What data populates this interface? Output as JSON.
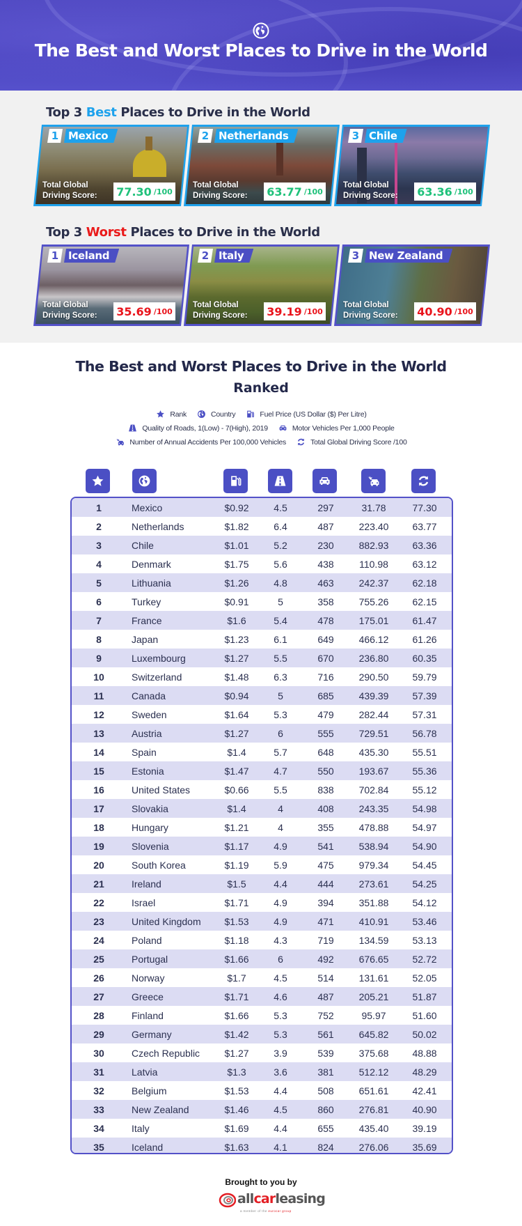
{
  "hero": {
    "icon": "globe-icon",
    "title": "The Best and Worst Places to Drive in the World"
  },
  "best": {
    "title_prefix": "Top 3 ",
    "title_highlight": "Best",
    "title_suffix": " Places to Drive in the World",
    "accent": "#1ea2ec",
    "score_color": "#1fc17a",
    "cards": [
      {
        "num": "1",
        "country": "Mexico",
        "label1": "Total Global",
        "label2": "Driving Score:",
        "score": "77.30",
        "denom": "/100"
      },
      {
        "num": "2",
        "country": "Netherlands",
        "label1": "Total Global",
        "label2": "Driving Score:",
        "score": "63.77",
        "denom": "/100"
      },
      {
        "num": "3",
        "country": "Chile",
        "label1": "Total Global",
        "label2": "Driving Score:",
        "score": "63.36",
        "denom": "/100"
      }
    ]
  },
  "worst": {
    "title_prefix": "Top 3 ",
    "title_highlight": "Worst",
    "title_suffix": " Places to Drive in the World",
    "accent": "#4b4fc4",
    "score_color": "#e9141c",
    "cards": [
      {
        "num": "1",
        "country": "Iceland",
        "label1": "Total Global",
        "label2": "Driving Score:",
        "score": "35.69",
        "denom": "/100"
      },
      {
        "num": "2",
        "country": "Italy",
        "label1": "Total Global",
        "label2": "Driving Score:",
        "score": "39.19",
        "denom": "/100"
      },
      {
        "num": "3",
        "country": "New Zealand",
        "label1": "Total Global",
        "label2": "Driving Score:",
        "score": "40.90",
        "denom": "/100"
      }
    ]
  },
  "ranked": {
    "title": "The Best and Worst Places to Drive in the World",
    "subtitle": "Ranked",
    "legend": {
      "rank": {
        "icon": "star-icon",
        "label": "Rank"
      },
      "country": {
        "icon": "globe-icon",
        "label": "Country"
      },
      "fuel": {
        "icon": "fuel-pump-icon",
        "label": "Fuel Price (US Dollar ($) Per Litre)"
      },
      "road": {
        "icon": "road-icon",
        "label": "Quality of Roads, 1(Low) - 7(High), 2019"
      },
      "vehicles": {
        "icon": "car-icon",
        "label": "Motor Vehicles Per 1,000 People"
      },
      "accidents": {
        "icon": "car-crash-icon",
        "label": "Number of Annual Accidents Per 100,000 Vehicles"
      },
      "score": {
        "icon": "sync-icon",
        "label": "Total Global Driving Score /100"
      }
    },
    "accent": "#4b4fc4",
    "row_alt_color": "#dcdcf3",
    "rows": [
      {
        "rank": "1",
        "country": "Mexico",
        "fuel": "$0.92",
        "road": "4.5",
        "vehicles": "297",
        "accidents": "31.78",
        "score": "77.30"
      },
      {
        "rank": "2",
        "country": "Netherlands",
        "fuel": "$1.82",
        "road": "6.4",
        "vehicles": "487",
        "accidents": "223.40",
        "score": "63.77"
      },
      {
        "rank": "3",
        "country": "Chile",
        "fuel": "$1.01",
        "road": "5.2",
        "vehicles": "230",
        "accidents": "882.93",
        "score": "63.36"
      },
      {
        "rank": "4",
        "country": "Denmark",
        "fuel": "$1.75",
        "road": "5.6",
        "vehicles": "438",
        "accidents": "110.98",
        "score": "63.12"
      },
      {
        "rank": "5",
        "country": "Lithuania",
        "fuel": "$1.26",
        "road": "4.8",
        "vehicles": "463",
        "accidents": "242.37",
        "score": "62.18"
      },
      {
        "rank": "6",
        "country": "Turkey",
        "fuel": "$0.91",
        "road": "5",
        "vehicles": "358",
        "accidents": "755.26",
        "score": "62.15"
      },
      {
        "rank": "7",
        "country": "France",
        "fuel": "$1.6",
        "road": "5.4",
        "vehicles": "478",
        "accidents": "175.01",
        "score": "61.47"
      },
      {
        "rank": "8",
        "country": "Japan",
        "fuel": "$1.23",
        "road": "6.1",
        "vehicles": "649",
        "accidents": "466.12",
        "score": "61.26"
      },
      {
        "rank": "9",
        "country": "Luxembourg",
        "fuel": "$1.27",
        "road": "5.5",
        "vehicles": "670",
        "accidents": "236.80",
        "score": "60.35"
      },
      {
        "rank": "10",
        "country": "Switzerland",
        "fuel": "$1.48",
        "road": "6.3",
        "vehicles": "716",
        "accidents": "290.50",
        "score": "59.79"
      },
      {
        "rank": "11",
        "country": "Canada",
        "fuel": "$0.94",
        "road": "5",
        "vehicles": "685",
        "accidents": "439.39",
        "score": "57.39"
      },
      {
        "rank": "12",
        "country": "Sweden",
        "fuel": "$1.64",
        "road": "5.3",
        "vehicles": "479",
        "accidents": "282.44",
        "score": "57.31"
      },
      {
        "rank": "13",
        "country": "Austria",
        "fuel": "$1.27",
        "road": "6",
        "vehicles": "555",
        "accidents": "729.51",
        "score": "56.78"
      },
      {
        "rank": "14",
        "country": "Spain",
        "fuel": "$1.4",
        "road": "5.7",
        "vehicles": "648",
        "accidents": "435.30",
        "score": "55.51"
      },
      {
        "rank": "15",
        "country": "Estonia",
        "fuel": "$1.47",
        "road": "4.7",
        "vehicles": "550",
        "accidents": "193.67",
        "score": "55.36"
      },
      {
        "rank": "16",
        "country": "United States",
        "fuel": "$0.66",
        "road": "5.5",
        "vehicles": "838",
        "accidents": "702.84",
        "score": "55.12"
      },
      {
        "rank": "17",
        "country": "Slovakia",
        "fuel": "$1.4",
        "road": "4",
        "vehicles": "408",
        "accidents": "243.35",
        "score": "54.98"
      },
      {
        "rank": "18",
        "country": "Hungary",
        "fuel": "$1.21",
        "road": "4",
        "vehicles": "355",
        "accidents": "478.88",
        "score": "54.97"
      },
      {
        "rank": "19",
        "country": "Slovenia",
        "fuel": "$1.17",
        "road": "4.9",
        "vehicles": "541",
        "accidents": "538.94",
        "score": "54.90"
      },
      {
        "rank": "20",
        "country": "South Korea",
        "fuel": "$1.19",
        "road": "5.9",
        "vehicles": "475",
        "accidents": "979.34",
        "score": "54.45"
      },
      {
        "rank": "21",
        "country": "Ireland",
        "fuel": "$1.5",
        "road": "4.4",
        "vehicles": "444",
        "accidents": "273.61",
        "score": "54.25"
      },
      {
        "rank": "22",
        "country": "Israel",
        "fuel": "$1.71",
        "road": "4.9",
        "vehicles": "394",
        "accidents": "351.88",
        "score": "54.12"
      },
      {
        "rank": "23",
        "country": "United Kingdom",
        "fuel": "$1.53",
        "road": "4.9",
        "vehicles": "471",
        "accidents": "410.91",
        "score": "53.46"
      },
      {
        "rank": "24",
        "country": "Poland",
        "fuel": "$1.18",
        "road": "4.3",
        "vehicles": "719",
        "accidents": "134.59",
        "score": "53.13"
      },
      {
        "rank": "25",
        "country": "Portugal",
        "fuel": "$1.66",
        "road": "6",
        "vehicles": "492",
        "accidents": "676.65",
        "score": "52.72"
      },
      {
        "rank": "26",
        "country": "Norway",
        "fuel": "$1.7",
        "road": "4.5",
        "vehicles": "514",
        "accidents": "131.61",
        "score": "52.05"
      },
      {
        "rank": "27",
        "country": "Greece",
        "fuel": "$1.71",
        "road": "4.6",
        "vehicles": "487",
        "accidents": "205.21",
        "score": "51.87"
      },
      {
        "rank": "28",
        "country": "Finland",
        "fuel": "$1.66",
        "road": "5.3",
        "vehicles": "752",
        "accidents": "95.97",
        "score": "51.60"
      },
      {
        "rank": "29",
        "country": "Germany",
        "fuel": "$1.42",
        "road": "5.3",
        "vehicles": "561",
        "accidents": "645.82",
        "score": "50.02"
      },
      {
        "rank": "30",
        "country": "Czech Republic",
        "fuel": "$1.27",
        "road": "3.9",
        "vehicles": "539",
        "accidents": "375.68",
        "score": "48.88"
      },
      {
        "rank": "31",
        "country": "Latvia",
        "fuel": "$1.3",
        "road": "3.6",
        "vehicles": "381",
        "accidents": "512.12",
        "score": "48.29"
      },
      {
        "rank": "32",
        "country": "Belgium",
        "fuel": "$1.53",
        "road": "4.4",
        "vehicles": "508",
        "accidents": "651.61",
        "score": "42.41"
      },
      {
        "rank": "33",
        "country": "New Zealand",
        "fuel": "$1.46",
        "road": "4.5",
        "vehicles": "860",
        "accidents": "276.81",
        "score": "40.90"
      },
      {
        "rank": "34",
        "country": "Italy",
        "fuel": "$1.69",
        "road": "4.4",
        "vehicles": "655",
        "accidents": "435.40",
        "score": "39.19"
      },
      {
        "rank": "35",
        "country": "Iceland",
        "fuel": "$1.63",
        "road": "4.1",
        "vehicles": "824",
        "accidents": "276.06",
        "score": "35.69"
      }
    ]
  },
  "footer": {
    "text": "Brought to you by",
    "logo_part1": "all",
    "logo_part2": "car",
    "logo_part3": "leasing",
    "logo_sub1": "a member of the ",
    "logo_sub2": "eurocar group"
  }
}
